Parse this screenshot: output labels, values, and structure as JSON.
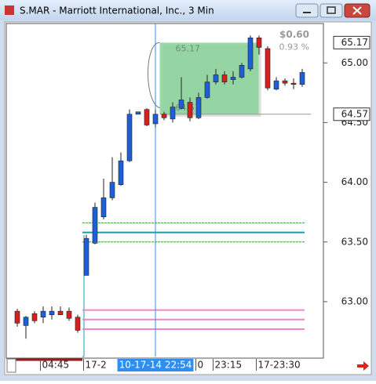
{
  "window": {
    "title": "S.MAR - Marriott International, Inc., 3 Min"
  },
  "chart_data": {
    "type": "candlestick",
    "categories": [
      null,
      null,
      null,
      "04:45",
      null,
      null,
      null,
      null,
      "17-2",
      null,
      null,
      null,
      null,
      null,
      null,
      null,
      null,
      null,
      null,
      null,
      null,
      "0",
      null,
      "23:15",
      null,
      null,
      null,
      null,
      "17-23:30",
      null,
      null,
      null,
      null,
      null
    ],
    "open": [
      62.92,
      62.8,
      62.9,
      62.87,
      62.89,
      62.92,
      62.92,
      62.87,
      63.22,
      63.49,
      63.71,
      63.87,
      63.98,
      64.18,
      64.57,
      64.61,
      64.49,
      64.57,
      64.53,
      64.62,
      64.67,
      64.54,
      64.71,
      64.84,
      64.9,
      64.86,
      64.88,
      64.95,
      65.21,
      65.12,
      64.78,
      64.85,
      64.83,
      64.82
    ],
    "high": [
      62.94,
      62.88,
      62.92,
      62.96,
      62.96,
      62.96,
      62.95,
      62.89,
      63.56,
      63.83,
      64.03,
      64.21,
      64.25,
      64.61,
      64.59,
      64.62,
      64.61,
      64.59,
      64.67,
      64.88,
      64.71,
      64.75,
      64.9,
      64.95,
      64.93,
      64.93,
      65.0,
      65.23,
      65.23,
      65.14,
      64.88,
      64.87,
      64.87,
      64.95
    ],
    "low": [
      62.79,
      62.69,
      62.82,
      62.82,
      62.85,
      62.89,
      62.84,
      62.74,
      63.22,
      63.48,
      63.69,
      63.85,
      63.97,
      64.17,
      64.57,
      64.47,
      64.46,
      64.52,
      64.5,
      64.61,
      64.51,
      64.53,
      64.7,
      64.82,
      64.82,
      64.82,
      64.87,
      64.93,
      65.07,
      64.77,
      64.77,
      64.81,
      64.78,
      64.8
    ],
    "close": [
      62.82,
      62.87,
      62.84,
      62.92,
      62.92,
      62.89,
      62.86,
      62.76,
      63.53,
      63.79,
      63.87,
      64.0,
      64.18,
      64.57,
      64.59,
      64.48,
      64.57,
      64.54,
      64.63,
      64.69,
      64.54,
      64.71,
      64.84,
      64.9,
      64.84,
      64.88,
      64.98,
      65.21,
      65.13,
      64.79,
      64.85,
      64.83,
      64.82,
      64.92
    ],
    "up_color": "#1d5fd6",
    "down_color": "#d61f1f",
    "ylim": [
      62.54,
      65.33
    ],
    "yticks": [
      {
        "value": 65,
        "label": "65.00"
      },
      {
        "value": 64.5,
        "label": "64.50"
      },
      {
        "value": 64,
        "label": "64.00"
      },
      {
        "value": 63.5,
        "label": "63.50"
      },
      {
        "value": 63,
        "label": "63.00"
      }
    ],
    "price_markers": [
      65.17,
      64.57
    ],
    "levels": [
      {
        "value": 63.66,
        "color": "#22aa22",
        "dashed": true
      },
      {
        "value": 63.58,
        "color": "#1a9aaa",
        "dashed": false
      },
      {
        "value": 63.5,
        "color": "#22aa22",
        "dashed": true
      },
      {
        "value": 62.93,
        "color": "#ee88cc",
        "dashed": false
      },
      {
        "value": 62.85,
        "color": "#ee88cc",
        "dashed": false
      },
      {
        "value": 62.77,
        "color": "#ee88cc",
        "dashed": false
      }
    ],
    "cursor": {
      "index": 16,
      "label": "10-17-14  22:54"
    },
    "measure": {
      "start_index": 17,
      "end_index": 28,
      "from": 64.57,
      "to": 65.17,
      "top_label": "65.17",
      "bottom_label": "64.57",
      "change_label": "$0.60",
      "percent_label": "0.93 %",
      "color": "#88d49a"
    }
  }
}
